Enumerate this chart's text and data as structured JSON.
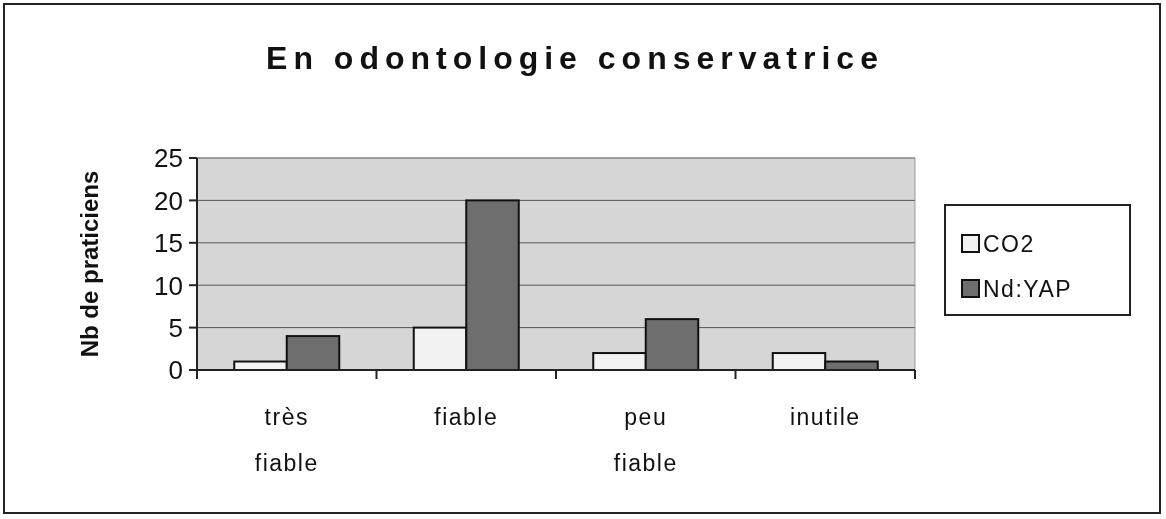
{
  "chart_data": {
    "type": "bar",
    "title": "En odontologie conservatrice",
    "ylabel": "Nb de praticiens",
    "categories": [
      "très fiable",
      "fiable",
      "peu fiable",
      "inutile"
    ],
    "series": [
      {
        "name": "CO2",
        "color": "#f2f2f2",
        "values": [
          1,
          5,
          2,
          2
        ]
      },
      {
        "name": "Nd:YAP",
        "color": "#6e6e6e",
        "values": [
          4,
          20,
          6,
          1
        ]
      }
    ],
    "ylim": [
      0,
      25
    ],
    "yticks": [
      0,
      5,
      10,
      15,
      20,
      25
    ],
    "grid": "y",
    "legend": "right"
  }
}
